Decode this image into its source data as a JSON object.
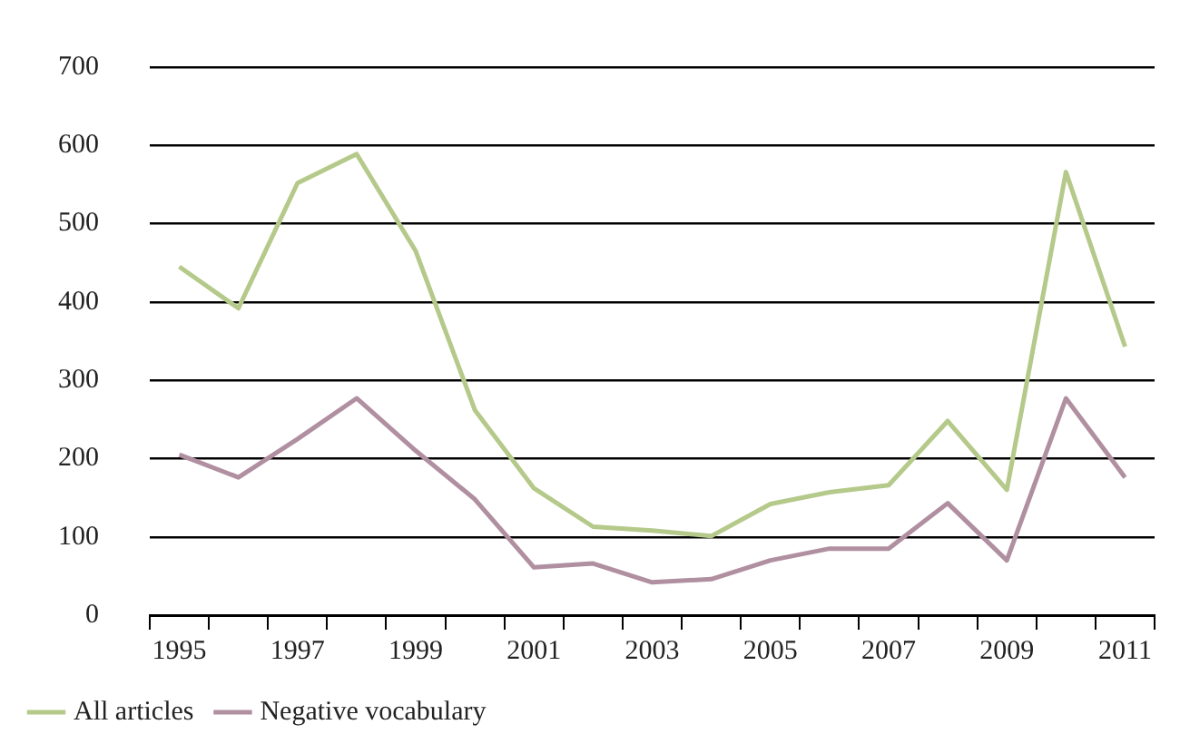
{
  "chart_data": {
    "type": "line",
    "categories": [
      "1995",
      null,
      "1997",
      null,
      "1999",
      null,
      "2001",
      null,
      "2003",
      null,
      "2005",
      null,
      "2007",
      null,
      "2009",
      null,
      "2011"
    ],
    "series": [
      {
        "name": "All articles",
        "color": "#b5c98a",
        "values": [
          445,
          392,
          552,
          589,
          465,
          262,
          162,
          113,
          108,
          101,
          142,
          157,
          166,
          248,
          160,
          566,
          343
        ]
      },
      {
        "name": "Negative vocabulary",
        "color": "#b08fa0",
        "values": [
          205,
          176,
          225,
          277,
          210,
          148,
          61,
          66,
          42,
          46,
          70,
          85,
          85,
          143,
          70,
          277,
          176
        ]
      }
    ],
    "ylim": [
      0,
      700
    ],
    "yticks": [
      0,
      100,
      200,
      300,
      400,
      500,
      600,
      700
    ],
    "grid": "y",
    "legend": "bottom left",
    "marker": "none",
    "line_style": "solid"
  }
}
